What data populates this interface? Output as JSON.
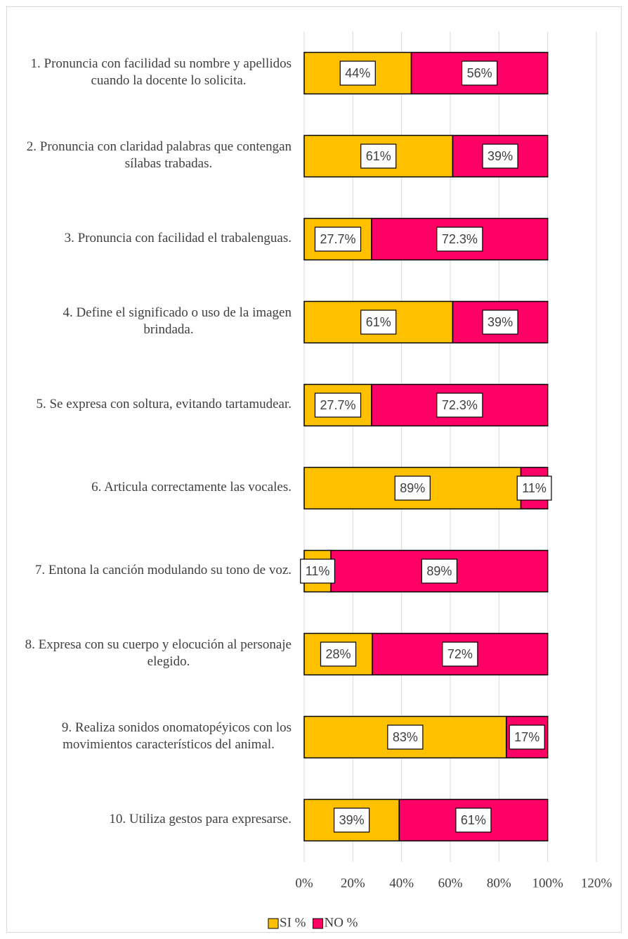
{
  "chart_data": {
    "type": "bar",
    "orientation": "horizontal",
    "stacked": true,
    "categories": [
      "1. Pronuncia con facilidad su nombre y apellidos cuando la docente lo solicita.",
      "2. Pronuncia con claridad palabras que contengan sílabas trabadas.",
      "3. Pronuncia con facilidad el trabalenguas.",
      "4. Define el significado o uso de la imagen brindada.",
      "5. Se expresa con soltura, evitando tartamudear.",
      "6. Articula correctamente las vocales.",
      "7. Entona la canción modulando su tono de voz.",
      "8. Expresa con su cuerpo y elocución al personaje elegido.",
      "9. Realiza sonidos onomatopéyicos con los movimientos característicos del animal.",
      "10. Utiliza gestos para expresarse."
    ],
    "series": [
      {
        "name": "SI %",
        "color": "#ffc000",
        "values": [
          44,
          61,
          27.7,
          61,
          27.7,
          89,
          11,
          28,
          83,
          39
        ],
        "value_labels": [
          "44%",
          "61%",
          "27.7%",
          "61%",
          "27.7%",
          "89%",
          "11%",
          "28%",
          "83%",
          "39%"
        ]
      },
      {
        "name": "NO %",
        "color": "#ff0066",
        "values": [
          56,
          39,
          72.3,
          39,
          72.3,
          11,
          89,
          72,
          17,
          61
        ],
        "value_labels": [
          "56%",
          "39%",
          "72.3%",
          "39%",
          "72.3%",
          "11%",
          "89%",
          "72%",
          "17%",
          "61%"
        ]
      }
    ],
    "xlim": [
      0,
      120
    ],
    "xticks": [
      {
        "value": 0,
        "label": "0%"
      },
      {
        "value": 20,
        "label": "20%"
      },
      {
        "value": 40,
        "label": "40%"
      },
      {
        "value": 60,
        "label": "60%"
      },
      {
        "value": 80,
        "label": "80%"
      },
      {
        "value": 100,
        "label": "100%"
      },
      {
        "value": 120,
        "label": "120%"
      }
    ],
    "grid": true,
    "legend": "bottom"
  }
}
